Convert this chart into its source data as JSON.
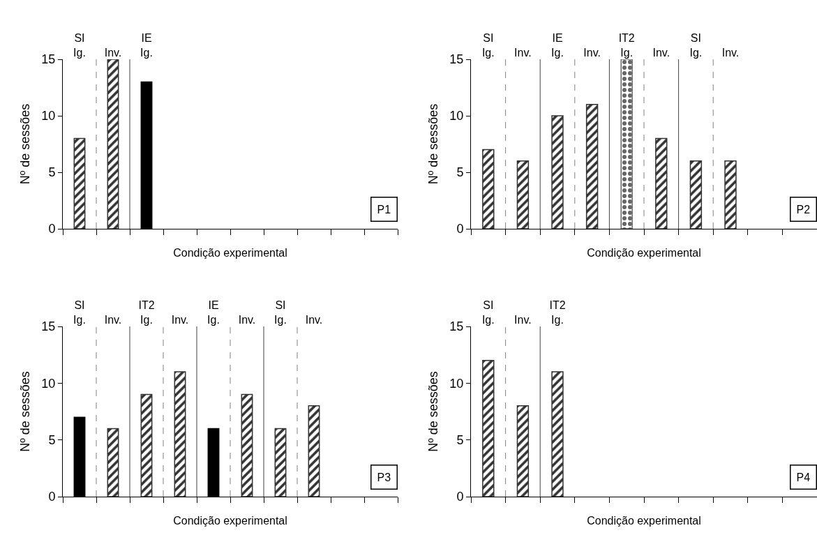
{
  "chart_data": [
    {
      "type": "bar",
      "xlabel": "Condição experimental",
      "ylabel": "Nº de sessões",
      "annotations": [
        "P1"
      ],
      "categories": [
        "SI\nIg.",
        "Inv.",
        "IE\nIg.",
        null,
        null,
        null,
        null,
        null,
        null,
        null
      ],
      "values": [
        8,
        15,
        13,
        null,
        null,
        null,
        null,
        null,
        null,
        null
      ],
      "colors": [
        "#333333",
        "#333333",
        "#000000",
        null,
        null,
        null,
        null,
        null,
        null,
        null
      ],
      "ylim": [
        0,
        15
      ],
      "yticks": [
        0,
        5,
        10,
        15
      ]
    },
    {
      "type": "bar",
      "xlabel": "Condição experimental",
      "ylabel": "Nº de sessões",
      "annotations": [
        "P2"
      ],
      "categories": [
        "SI\nIg.",
        "Inv.",
        "IE\nIg.",
        "Inv.",
        "IT2\nIg.",
        "Inv.",
        "SI\nIg.",
        "Inv.",
        null,
        null
      ],
      "values": [
        7,
        6,
        10,
        11,
        15,
        8,
        6,
        6,
        null,
        null
      ],
      "colors": [
        "#333333",
        "#333333",
        "#333333",
        "#333333",
        "#666666",
        "#333333",
        "#333333",
        "#333333",
        null,
        null
      ],
      "ylim": [
        0,
        15
      ],
      "yticks": [
        0,
        5,
        10,
        15
      ]
    },
    {
      "type": "bar",
      "xlabel": "Condição experimental",
      "ylabel": "Nº de sessões",
      "annotations": [
        "P3"
      ],
      "categories": [
        "SI\nIg.",
        "Inv.",
        "IT2\nIg.",
        "Inv.",
        "IE\nIg.",
        "Inv.",
        "SI\nIg.",
        "Inv.",
        null,
        null
      ],
      "values": [
        7,
        6,
        9,
        11,
        6,
        9,
        6,
        8,
        null,
        null
      ],
      "colors": [
        "#000000",
        "#333333",
        "#333333",
        "#333333",
        "#000000",
        "#333333",
        "#333333",
        "#333333",
        null,
        null
      ],
      "ylim": [
        0,
        15
      ],
      "yticks": [
        0,
        5,
        10,
        15
      ]
    },
    {
      "type": "bar",
      "xlabel": "Condição experimental",
      "ylabel": "Nº de sessões",
      "annotations": [
        "P4"
      ],
      "categories": [
        "SI\nIg.",
        "Inv.",
        "IT2\nIg.",
        null,
        null,
        null,
        null,
        null,
        null,
        null
      ],
      "values": [
        12,
        8,
        11,
        null,
        null,
        null,
        null,
        null,
        null,
        null
      ],
      "colors": [
        "#333333",
        "#333333",
        "#333333",
        null,
        null,
        null,
        null,
        null,
        null,
        null
      ],
      "ylim": [
        0,
        15
      ],
      "yticks": [
        0,
        5,
        10,
        15
      ]
    }
  ]
}
